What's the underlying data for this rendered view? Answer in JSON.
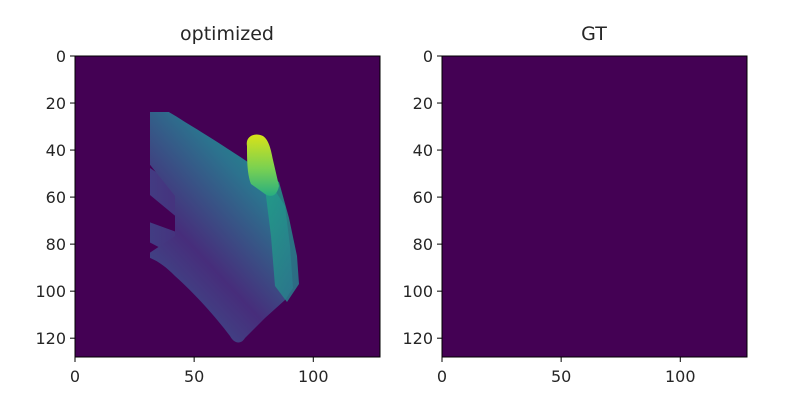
{
  "colors": {
    "background_low": "#440154",
    "palette": [
      "#440154",
      "#472d7b",
      "#3b528b",
      "#2c728e",
      "#21918c",
      "#28ae80",
      "#5ec962",
      "#addc30",
      "#fde725"
    ]
  },
  "chart_data": [
    {
      "type": "heatmap",
      "title": "optimized",
      "colormap": "viridis",
      "xlim": [
        0,
        128
      ],
      "ylim": [
        128,
        0
      ],
      "xticks": [
        0,
        50,
        100
      ],
      "yticks": [
        0,
        20,
        40,
        60,
        80,
        100,
        120
      ],
      "xtick_labels": [
        "0",
        "50",
        "100"
      ],
      "ytick_labels": [
        "0",
        "20",
        "40",
        "60",
        "80",
        "100",
        "120"
      ],
      "grid": false
    },
    {
      "type": "heatmap",
      "title": "GT",
      "colormap": "viridis",
      "xlim": [
        0,
        128
      ],
      "ylim": [
        128,
        0
      ],
      "xticks": [
        0,
        50,
        100
      ],
      "yticks": [
        0,
        20,
        40,
        60,
        80,
        100,
        120
      ],
      "xtick_labels": [
        "0",
        "50",
        "100"
      ],
      "ytick_labels": [
        "0",
        "20",
        "40",
        "60",
        "80",
        "100",
        "120"
      ],
      "grid": false
    }
  ]
}
